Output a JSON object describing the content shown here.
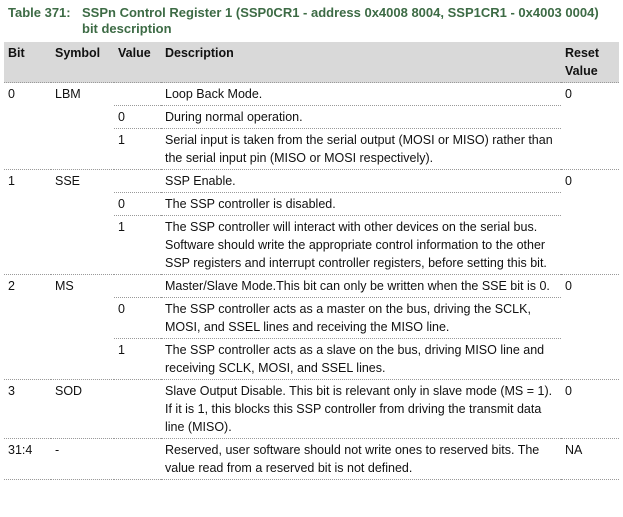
{
  "title": {
    "label": "Table 371:",
    "text": "SSPn Control Register 1 (SSP0CR1 - address 0x4008 8004, SSP1CR1 - 0x4003 0004) bit description"
  },
  "table": {
    "header": {
      "bit": "Bit",
      "symbol": "Symbol",
      "value": "Value",
      "description": "Description",
      "reset": "Reset Value"
    },
    "rows": [
      {
        "bit": "0",
        "symbol": "LBM",
        "description": "Loop Back Mode.",
        "reset": "0"
      },
      {
        "value": "0",
        "description": "During normal operation."
      },
      {
        "value": "1",
        "description": "Serial input is taken from the serial output (MOSI or MISO) rather than the serial input pin (MISO or MOSI respectively)."
      },
      {
        "bit": "1",
        "symbol": "SSE",
        "description": "SSP Enable.",
        "reset": "0"
      },
      {
        "value": "0",
        "description": "The SSP controller is disabled."
      },
      {
        "value": "1",
        "description": "The SSP controller will interact with other devices on the serial bus. Software should write the appropriate control information to the other SSP registers and interrupt controller registers, before setting this bit."
      },
      {
        "bit": "2",
        "symbol": "MS",
        "description": "Master/Slave Mode.This bit can only be written when the SSE bit is 0.",
        "reset": "0"
      },
      {
        "value": "0",
        "description": "The SSP controller acts as a master on the bus, driving the SCLK, MOSI, and SSEL lines and receiving the MISO line."
      },
      {
        "value": "1",
        "description": "The SSP controller acts as a slave on the bus, driving MISO line and receiving SCLK, MOSI, and SSEL lines."
      },
      {
        "bit": "3",
        "symbol": "SOD",
        "description": "Slave Output Disable. This bit is relevant only in slave mode (MS = 1). If it is 1, this blocks this SSP controller from driving the transmit data line (MISO).",
        "reset": "0"
      },
      {
        "bit": "31:4",
        "symbol": "-",
        "description": "Reserved, user software should not write ones to reserved bits. The value read from a reserved bit is not defined.",
        "reset": "NA"
      }
    ]
  }
}
